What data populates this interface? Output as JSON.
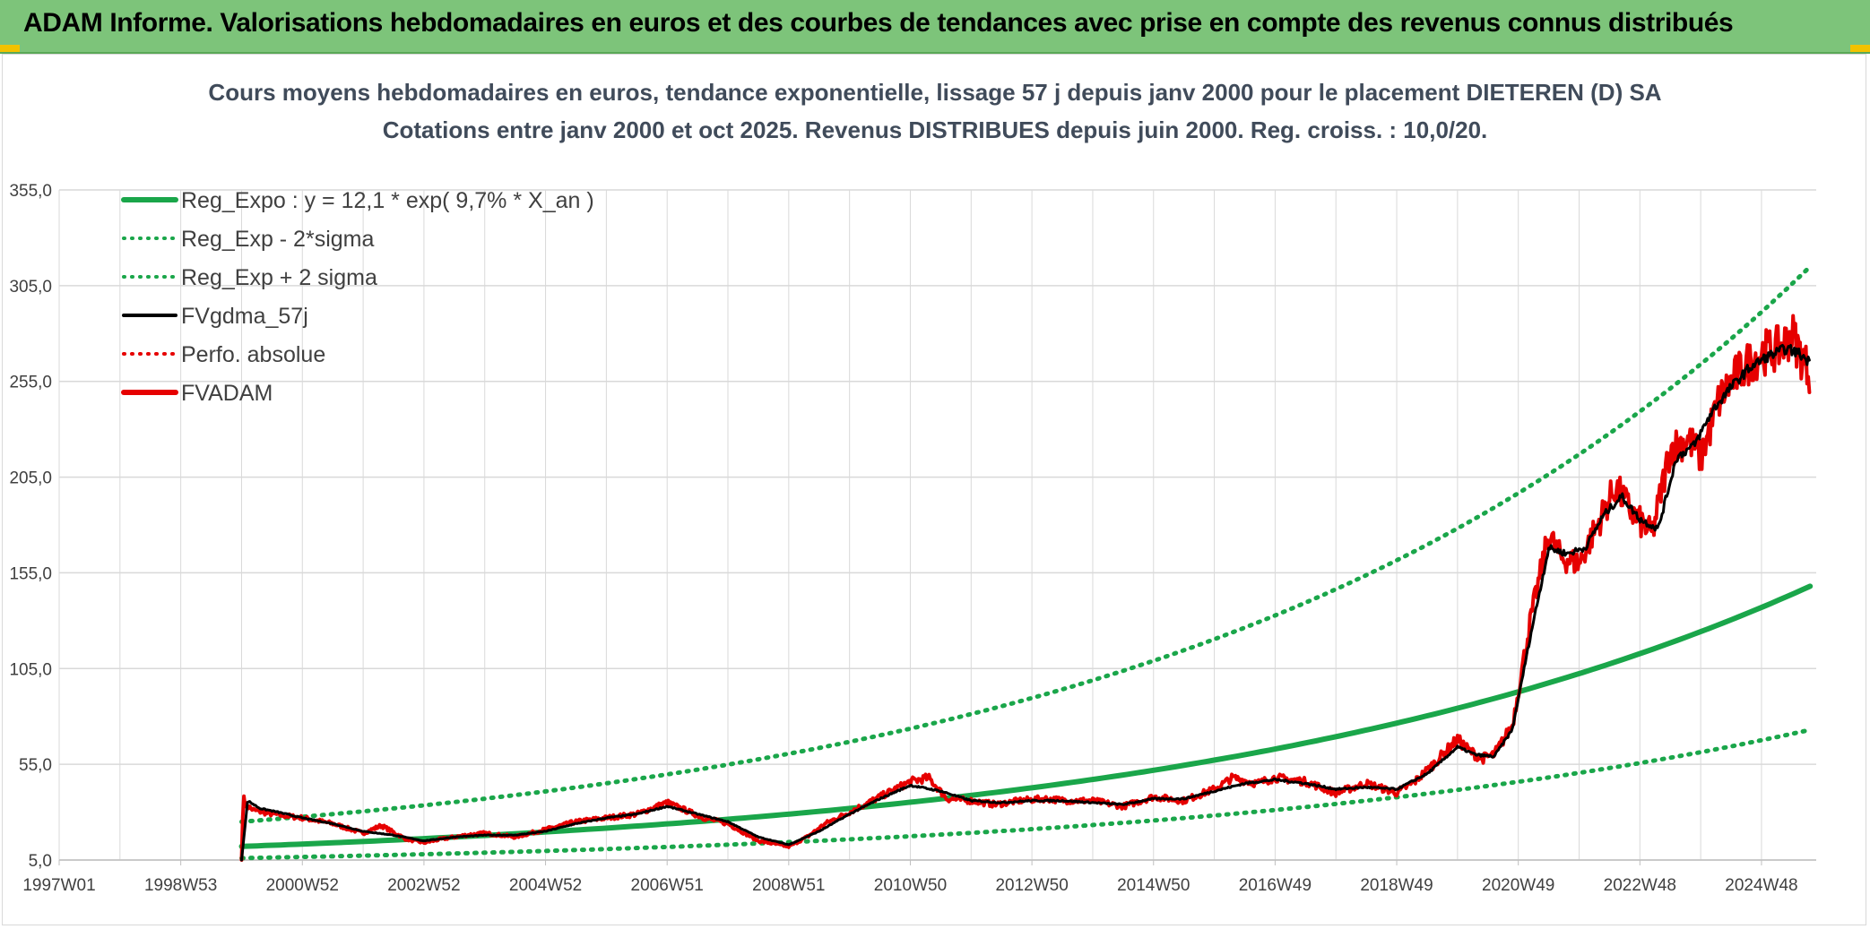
{
  "banner": {
    "title": "ADAM Informe. Valorisations hebdomadaires en euros et des courbes de tendances avec prise en compte des revenus connus distribués"
  },
  "colors": {
    "banner_bg": "#7dc47a",
    "green": "#1aa64a",
    "black": "#000000",
    "red": "#e60000",
    "grid": "#d9d9d9"
  },
  "chart_data": {
    "type": "line",
    "title": "Cours moyens hebdomadaires en euros, tendance exponentielle, lissage 57 j depuis janv 2000 pour le placement DIETEREN (D) SA",
    "subtitle": "Cotations entre janv 2000 et oct 2025. Revenus DISTRIBUES depuis juin 2000. Reg. croiss. : 10,0/20.",
    "xlabel": "",
    "ylabel": "",
    "x_range": [
      1997.0,
      2025.9
    ],
    "ylim": [
      5,
      355
    ],
    "y_ticks": [
      "5,0",
      "55,0",
      "105,0",
      "155,0",
      "205,0",
      "255,0",
      "305,0",
      "355,0"
    ],
    "x_ticks": [
      {
        "label": "1997W01",
        "x": 1997.0
      },
      {
        "label": "1998W53",
        "x": 1999.0
      },
      {
        "label": "2000W52",
        "x": 2001.0
      },
      {
        "label": "2002W52",
        "x": 2003.0
      },
      {
        "label": "2004W52",
        "x": 2005.0
      },
      {
        "label": "2006W51",
        "x": 2007.0
      },
      {
        "label": "2008W51",
        "x": 2009.0
      },
      {
        "label": "2010W50",
        "x": 2011.0
      },
      {
        "label": "2012W50",
        "x": 2013.0
      },
      {
        "label": "2014W50",
        "x": 2015.0
      },
      {
        "label": "2016W49",
        "x": 2017.0
      },
      {
        "label": "2018W49",
        "x": 2019.0
      },
      {
        "label": "2020W49",
        "x": 2021.0
      },
      {
        "label": "2022W48",
        "x": 2023.0
      },
      {
        "label": "2024W48",
        "x": 2025.0
      }
    ],
    "grid": true,
    "legend_position": "top-left",
    "legend": [
      {
        "name": "Reg_Expo : y = 12,1 * exp( 9,7% *  X_an )",
        "color": "#1aa64a",
        "style": "solid-thick"
      },
      {
        "name": "Reg_Exp - 2*sigma",
        "color": "#1aa64a",
        "style": "dotted"
      },
      {
        "name": "Reg_Exp + 2 sigma",
        "color": "#1aa64a",
        "style": "dotted"
      },
      {
        "name": "FVgdma_57j",
        "color": "#000000",
        "style": "solid"
      },
      {
        "name": "Perfo. absolue",
        "color": "#e60000",
        "style": "dotted"
      },
      {
        "name": "FVADAM",
        "color": "#e60000",
        "style": "solid-thick"
      }
    ],
    "series": [
      {
        "name": "Reg_Expo : y = 12,1 * exp( 9,7% *  X_an )",
        "x": [
          2000.0,
          2025.8
        ],
        "y": [
          12.1,
          148.0
        ],
        "kind": "exponential"
      },
      {
        "name": "Reg_Exp - 2*sigma",
        "x": [
          2000.0,
          2025.8
        ],
        "y": [
          6.0,
          73.0
        ],
        "kind": "exponential"
      },
      {
        "name": "Reg_Exp + 2 sigma",
        "x": [
          2000.0,
          2025.8
        ],
        "y": [
          25.0,
          315.0
        ],
        "kind": "exponential"
      },
      {
        "name": "FVADAM",
        "x": [
          2000.0,
          2000.03,
          2000.06,
          2000.2,
          2000.5,
          2001.0,
          2001.5,
          2002.0,
          2002.3,
          2002.7,
          2003.0,
          2003.3,
          2003.7,
          2004.0,
          2004.5,
          2005.0,
          2005.5,
          2006.0,
          2006.5,
          2007.0,
          2007.3,
          2007.6,
          2008.0,
          2008.5,
          2009.0,
          2009.3,
          2009.6,
          2010.0,
          2010.5,
          2011.0,
          2011.3,
          2011.6,
          2012.0,
          2012.4,
          2012.8,
          2013.2,
          2013.6,
          2014.0,
          2014.5,
          2015.0,
          2015.5,
          2016.0,
          2016.3,
          2016.7,
          2017.0,
          2017.5,
          2018.0,
          2018.5,
          2019.0,
          2019.3,
          2019.6,
          2020.0,
          2020.2,
          2020.4,
          2020.6,
          2020.9,
          2021.2,
          2021.5,
          2021.7,
          2022.0,
          2022.3,
          2022.6,
          2022.9,
          2023.2,
          2023.5,
          2023.8,
          2024.0,
          2024.3,
          2024.5,
          2024.8,
          2025.0,
          2025.3,
          2025.5,
          2025.7,
          2025.8
        ],
        "y": [
          5,
          40,
          34,
          31,
          29,
          27,
          24,
          19,
          23,
          16,
          14,
          16,
          18,
          19,
          17,
          21,
          25,
          27,
          29,
          35,
          31,
          27,
          24,
          15,
          12,
          17,
          24,
          30,
          38,
          46,
          48,
          37,
          36,
          34,
          36,
          37,
          36,
          36,
          33,
          38,
          36,
          42,
          48,
          45,
          48,
          46,
          40,
          45,
          40,
          46,
          55,
          68,
          62,
          58,
          60,
          75,
          130,
          175,
          163,
          160,
          180,
          200,
          185,
          175,
          220,
          225,
          215,
          245,
          255,
          265,
          270,
          272,
          280,
          265,
          260
        ]
      },
      {
        "name": "FVgdma_57j",
        "x": [
          2000.0,
          2000.1,
          2000.3,
          2000.6,
          2001.0,
          2001.5,
          2002.0,
          2002.5,
          2003.0,
          2003.5,
          2004.0,
          2004.5,
          2005.0,
          2005.5,
          2006.0,
          2006.5,
          2007.0,
          2007.5,
          2008.0,
          2008.5,
          2009.0,
          2009.5,
          2010.0,
          2010.5,
          2011.0,
          2011.5,
          2012.0,
          2012.5,
          2013.0,
          2013.5,
          2014.0,
          2014.5,
          2015.0,
          2015.5,
          2016.0,
          2016.5,
          2017.0,
          2017.5,
          2018.0,
          2018.5,
          2019.0,
          2019.5,
          2020.0,
          2020.3,
          2020.6,
          2020.9,
          2021.2,
          2021.5,
          2021.8,
          2022.1,
          2022.4,
          2022.7,
          2023.0,
          2023.3,
          2023.6,
          2023.9,
          2024.2,
          2024.5,
          2024.8,
          2025.1,
          2025.4,
          2025.6,
          2025.8
        ],
        "y": [
          5,
          36,
          32,
          30,
          27,
          24,
          20,
          18,
          15,
          17,
          18,
          18,
          20,
          24,
          27,
          29,
          33,
          29,
          25,
          17,
          13,
          20,
          29,
          37,
          44,
          41,
          36,
          35,
          36,
          36,
          35,
          34,
          37,
          37,
          41,
          45,
          47,
          45,
          42,
          43,
          42,
          50,
          64,
          60,
          59,
          73,
          122,
          168,
          165,
          168,
          185,
          195,
          183,
          178,
          215,
          222,
          240,
          252,
          262,
          268,
          272,
          270,
          265
        ]
      }
    ]
  }
}
